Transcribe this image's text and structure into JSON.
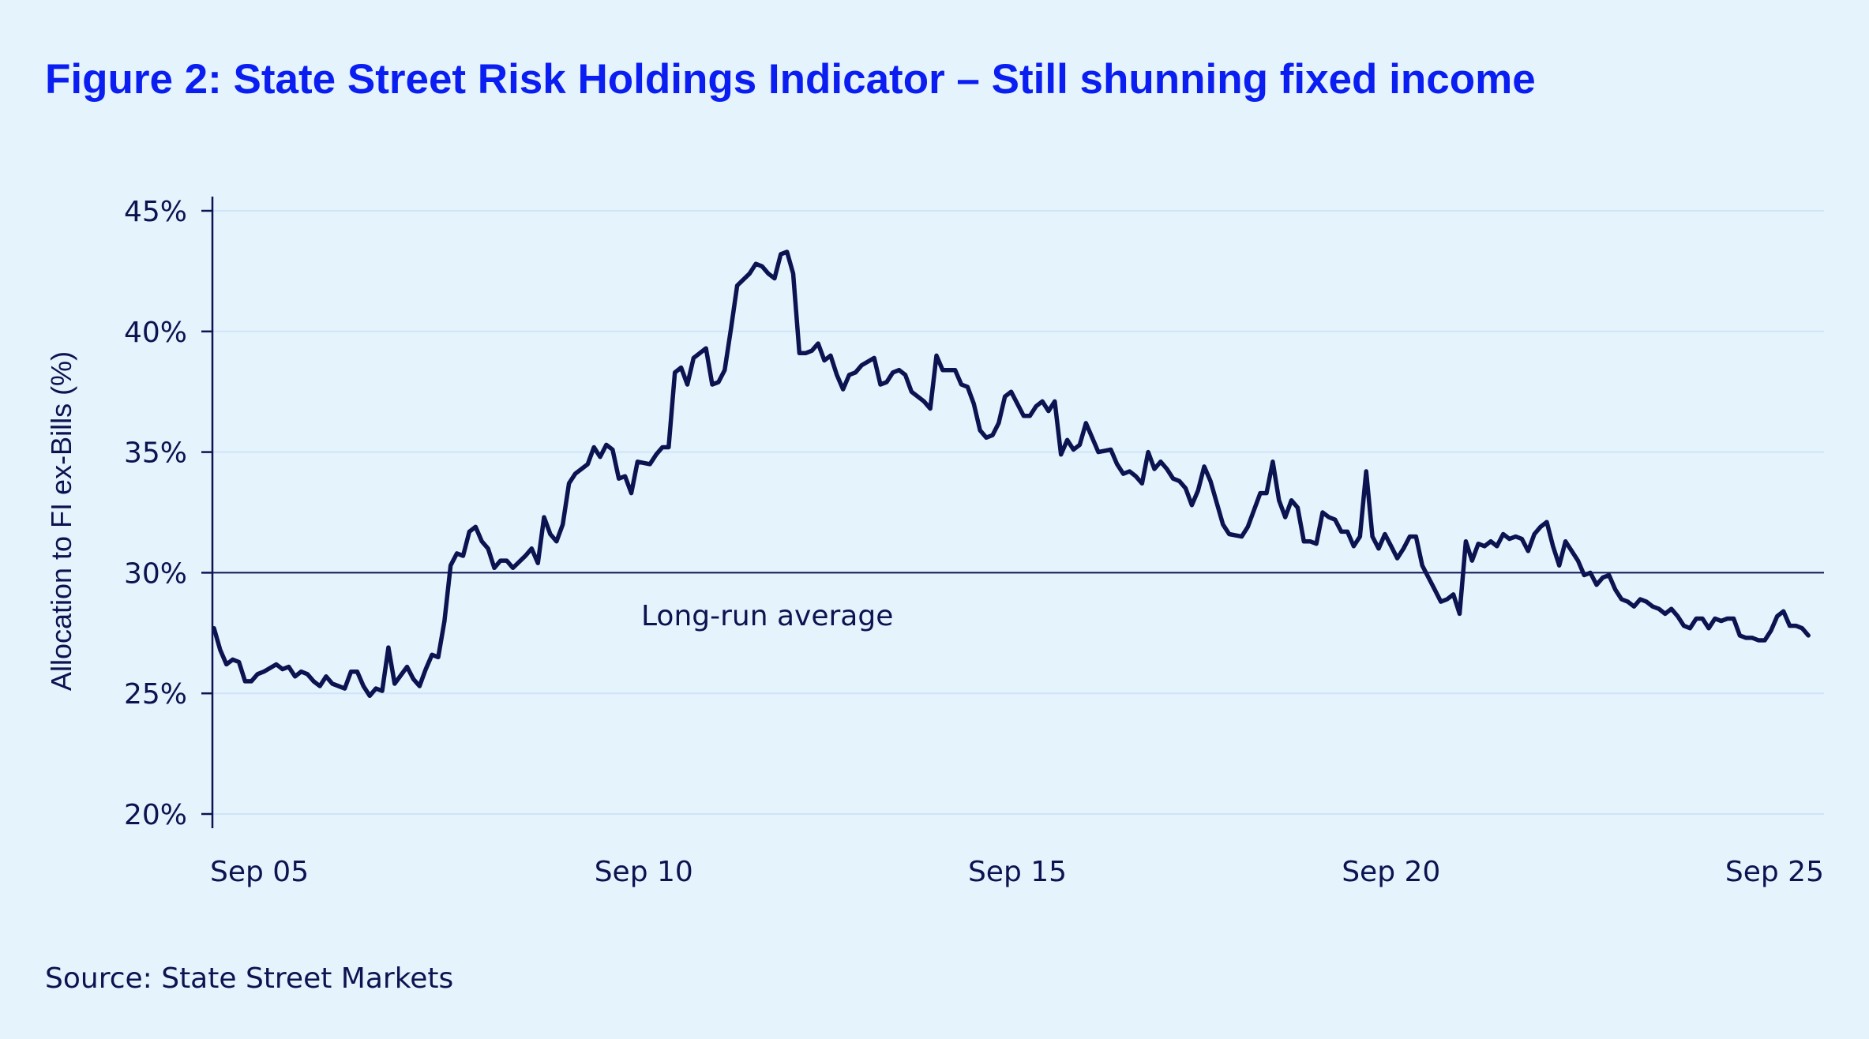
{
  "chart_data": {
    "type": "line",
    "title": "Figure 2: State Street Risk Holdings Indicator – Still shunning fixed income",
    "xlabel": "",
    "ylabel": "Allocation to FI ex-Bills (%)",
    "ylim": [
      20,
      45
    ],
    "y_ticks": [
      "20%",
      "25%",
      "30%",
      "35%",
      "40%",
      "45%"
    ],
    "y_tick_values": [
      20,
      25,
      30,
      35,
      40,
      45
    ],
    "x_ticks": [
      "Sep 05",
      "Sep 10",
      "Sep 15",
      "Sep 20",
      "Sep 25"
    ],
    "x_tick_dates": [
      "2005-09",
      "2010-09",
      "2015-09",
      "2020-09",
      "2025-09"
    ],
    "grid": "horizontal",
    "reference_line": {
      "value": 30,
      "label": "Long-run average"
    },
    "source": "Source: State Street Markets",
    "colors": {
      "title": "#0a1ef2",
      "line": "#0b1450",
      "grid": "#cfe4f7",
      "background": "#e5f3fd"
    },
    "series": [
      {
        "x": [
          "2004-12",
          "2005-01",
          "2005-02",
          "2005-03",
          "2005-04",
          "2005-05",
          "2005-06",
          "2005-07",
          "2005-08",
          "2005-10",
          "2005-11",
          "2005-12",
          "2006-01",
          "2006-02",
          "2006-03",
          "2006-04",
          "2006-05",
          "2006-06",
          "2006-07",
          "2006-08",
          "2006-09",
          "2006-10",
          "2006-11",
          "2006-12",
          "2007-01",
          "2007-02",
          "2007-03",
          "2007-04",
          "2007-05",
          "2007-07",
          "2007-08",
          "2007-09",
          "2007-10",
          "2007-11",
          "2007-12",
          "2008-01",
          "2008-02",
          "2008-03",
          "2008-04",
          "2008-05",
          "2008-06",
          "2008-07",
          "2008-08",
          "2008-09",
          "2008-10",
          "2008-11",
          "2008-12",
          "2009-02",
          "2009-03",
          "2009-04",
          "2009-05",
          "2009-06",
          "2009-07",
          "2009-08",
          "2009-09",
          "2009-10",
          "2009-12",
          "2010-01",
          "2010-02",
          "2010-03",
          "2010-04",
          "2010-05",
          "2010-06",
          "2010-07",
          "2010-08",
          "2010-10",
          "2010-11",
          "2010-12",
          "2011-01",
          "2011-02",
          "2011-03",
          "2011-04",
          "2011-05",
          "2011-07",
          "2011-08",
          "2011-09",
          "2011-10",
          "2011-11",
          "2011-12",
          "2012-02",
          "2012-03",
          "2012-04",
          "2012-05",
          "2012-06",
          "2012-07",
          "2012-08",
          "2012-09",
          "2012-10",
          "2012-11",
          "2012-12",
          "2013-01",
          "2013-02",
          "2013-03",
          "2013-04",
          "2013-05",
          "2013-06",
          "2013-07",
          "2013-08",
          "2013-10",
          "2013-11",
          "2013-12",
          "2014-01",
          "2014-02",
          "2014-03",
          "2014-04",
          "2014-06",
          "2014-07",
          "2014-08",
          "2014-09",
          "2014-11",
          "2014-12",
          "2015-01",
          "2015-02",
          "2015-03",
          "2015-04",
          "2015-05",
          "2015-06",
          "2015-07",
          "2015-08",
          "2015-09",
          "2015-10",
          "2015-11",
          "2015-12",
          "2016-01",
          "2016-02",
          "2016-03",
          "2016-04",
          "2016-05",
          "2016-06",
          "2016-07",
          "2016-08",
          "2016-09",
          "2016-10",
          "2016-12",
          "2017-01",
          "2017-02",
          "2017-03",
          "2017-04",
          "2017-05",
          "2017-06",
          "2017-07",
          "2017-08",
          "2017-09",
          "2017-10",
          "2017-11",
          "2017-12",
          "2018-01",
          "2018-02",
          "2018-03",
          "2018-04",
          "2018-05",
          "2018-06",
          "2018-07",
          "2018-09",
          "2018-10",
          "2018-11",
          "2018-12",
          "2019-01",
          "2019-02",
          "2019-03",
          "2019-04",
          "2019-05",
          "2019-06",
          "2019-07",
          "2019-08",
          "2019-09",
          "2019-10",
          "2019-11",
          "2019-12",
          "2020-01",
          "2020-02",
          "2020-03",
          "2020-04",
          "2020-05",
          "2020-06",
          "2020-07",
          "2020-08",
          "2020-09",
          "2020-10",
          "2020-11",
          "2020-12",
          "2021-01",
          "2021-02",
          "2021-03",
          "2021-04",
          "2021-05",
          "2021-06",
          "2021-07",
          "2021-08",
          "2021-09",
          "2021-10",
          "2021-11",
          "2021-12",
          "2022-01",
          "2022-02",
          "2022-03",
          "2022-04",
          "2022-05",
          "2022-06",
          "2022-07",
          "2022-08",
          "2022-09",
          "2022-10",
          "2022-11",
          "2022-12",
          "2023-01",
          "2023-02",
          "2023-03",
          "2023-04",
          "2023-05",
          "2023-06",
          "2023-07",
          "2023-08",
          "2023-09",
          "2023-10",
          "2023-11",
          "2023-12",
          "2024-01",
          "2024-02",
          "2024-03",
          "2024-04",
          "2024-05",
          "2024-06",
          "2024-07",
          "2024-08",
          "2024-09",
          "2024-10",
          "2024-11",
          "2024-12",
          "2025-01",
          "2025-02",
          "2025-03",
          "2025-04",
          "2025-05",
          "2025-06",
          "2025-07",
          "2025-08",
          "2025-09",
          "2025-10",
          "2025-11",
          "2025-12",
          "2026-01",
          "2026-02",
          "2026-03",
          "2026-04"
        ],
        "y": [
          27.7,
          26.8,
          26.2,
          26.4,
          26.3,
          25.5,
          25.5,
          25.8,
          25.9,
          26.2,
          26.0,
          26.1,
          25.7,
          25.9,
          25.8,
          25.5,
          25.3,
          25.7,
          25.4,
          25.3,
          25.2,
          25.9,
          25.9,
          25.3,
          24.9,
          25.2,
          25.1,
          26.9,
          25.4,
          26.1,
          25.6,
          25.3,
          26.0,
          26.6,
          26.5,
          28.0,
          30.3,
          30.8,
          30.7,
          31.7,
          31.9,
          31.3,
          31.0,
          30.2,
          30.5,
          30.5,
          30.2,
          30.7,
          31.0,
          30.4,
          32.3,
          31.6,
          31.3,
          32.0,
          33.7,
          34.1,
          34.5,
          35.2,
          34.8,
          35.3,
          35.1,
          33.9,
          34.0,
          33.3,
          34.6,
          34.5,
          34.9,
          35.2,
          35.2,
          38.3,
          38.5,
          37.8,
          38.9,
          39.3,
          37.8,
          37.9,
          38.4,
          40.1,
          41.9,
          42.4,
          42.8,
          42.7,
          42.4,
          42.2,
          43.2,
          43.3,
          42.4,
          39.1,
          39.1,
          39.2,
          39.5,
          38.8,
          39.0,
          38.2,
          37.6,
          38.2,
          38.3,
          38.6,
          38.9,
          37.8,
          37.9,
          38.3,
          38.4,
          38.2,
          37.5,
          37.1,
          36.8,
          39.0,
          38.4,
          38.4,
          37.8,
          37.7,
          37.0,
          35.9,
          35.6,
          35.7,
          36.2,
          37.3,
          37.5,
          37.0,
          36.5,
          36.5,
          36.9,
          37.1,
          36.7,
          37.1,
          34.9,
          35.5,
          35.1,
          35.3,
          36.2,
          35.6,
          35.0,
          35.1,
          34.5,
          34.1,
          34.2,
          34.0,
          33.7,
          35.0,
          34.3,
          34.6,
          34.3,
          33.9,
          33.8,
          33.5,
          32.8,
          33.4,
          34.4,
          33.8,
          32.9,
          32.0,
          31.6,
          31.5,
          31.9,
          32.6,
          33.3,
          33.3,
          34.6,
          33.0,
          32.3,
          33.0,
          32.7,
          31.3,
          31.3,
          31.2,
          32.5,
          32.3,
          32.2,
          31.7,
          31.7,
          31.1,
          31.5,
          34.2,
          31.5,
          31.0,
          31.6,
          31.1,
          30.6,
          31.0,
          31.5,
          31.5,
          30.3,
          29.8,
          29.3,
          28.8,
          28.9,
          29.1,
          28.3,
          31.3,
          30.5,
          31.2,
          31.1,
          31.3,
          31.1,
          31.6,
          31.4,
          31.5,
          31.4,
          30.9,
          31.6,
          31.9,
          32.1,
          31.1,
          30.3,
          31.3,
          30.9,
          30.5,
          29.9,
          30.0,
          29.5,
          29.8,
          29.9,
          29.3,
          28.9,
          28.8,
          28.6,
          28.9,
          28.8,
          28.6,
          28.5,
          28.3,
          28.5,
          28.2,
          27.8,
          27.7,
          28.1,
          28.1,
          27.7,
          28.1,
          28.0,
          28.1,
          28.1,
          27.4,
          27.3,
          27.3,
          27.2,
          27.2,
          27.6,
          28.2,
          28.4,
          27.8,
          27.8,
          27.7,
          27.4
        ]
      }
    ]
  }
}
